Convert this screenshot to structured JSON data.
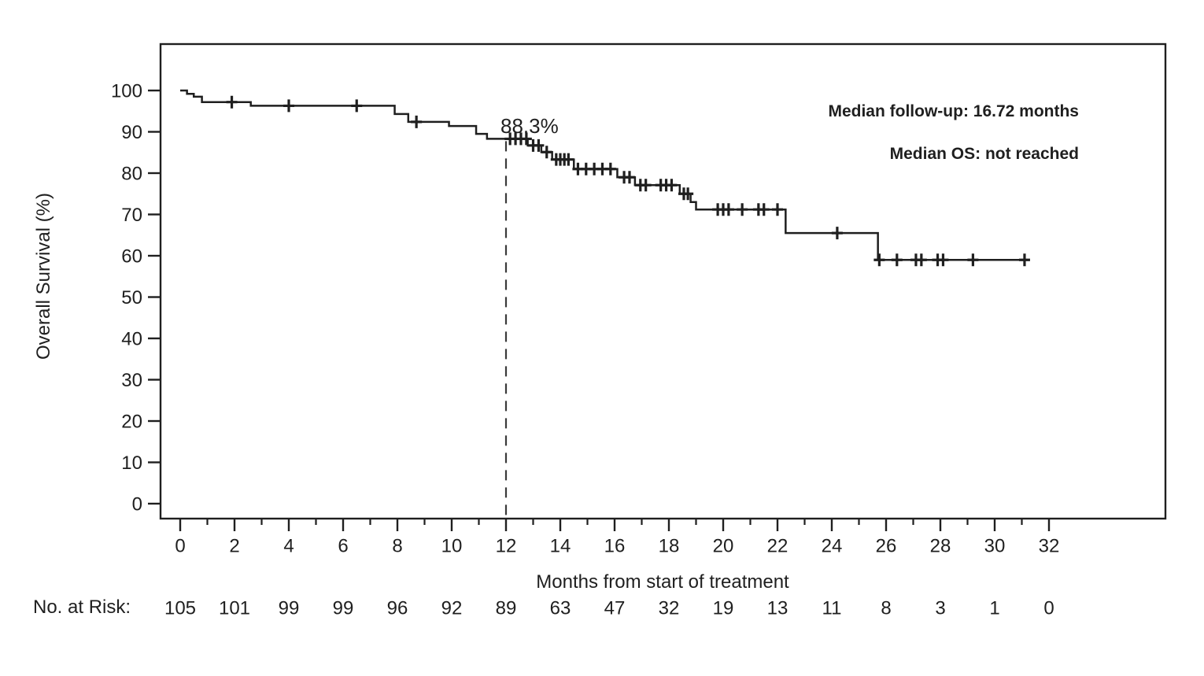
{
  "chart_data": {
    "type": "line",
    "subtype": "kaplan-meier-step-curve",
    "title": "",
    "xlabel": "Months from start of treatment",
    "ylabel": "Overall Survival (%)",
    "xlim": [
      0,
      32
    ],
    "ylim": [
      0,
      100
    ],
    "grid": false,
    "legend": false,
    "x_major_ticks": [
      0,
      2,
      4,
      6,
      8,
      10,
      12,
      14,
      16,
      18,
      20,
      22,
      24,
      26,
      28,
      30,
      32
    ],
    "x_minor_ticks": [
      1,
      3,
      5,
      7,
      9,
      11,
      13,
      15,
      17,
      19,
      21,
      23,
      25,
      27,
      29,
      31
    ],
    "y_ticks": [
      0,
      10,
      20,
      30,
      40,
      50,
      60,
      70,
      80,
      90,
      100
    ],
    "annotations": [
      "Median follow-up: 16.72 months",
      "Median OS: not reached"
    ],
    "landmark": {
      "month": 12,
      "survival_pct": 88.3,
      "label": "88.3%",
      "dashed_line": true
    },
    "series": [
      {
        "name": "Overall Survival",
        "steps": [
          [
            0.0,
            100.0
          ],
          [
            0.25,
            99.2
          ],
          [
            0.5,
            98.5
          ],
          [
            0.8,
            97.2
          ],
          [
            2.6,
            96.3
          ],
          [
            7.9,
            94.3
          ],
          [
            8.4,
            92.4
          ],
          [
            9.9,
            91.4
          ],
          [
            10.9,
            89.5
          ],
          [
            11.3,
            88.3
          ],
          [
            12.8,
            86.7
          ],
          [
            13.3,
            85.1
          ],
          [
            13.7,
            83.3
          ],
          [
            14.5,
            81.0
          ],
          [
            16.1,
            79.0
          ],
          [
            16.75,
            77.1
          ],
          [
            18.4,
            75.0
          ],
          [
            18.8,
            73.0
          ],
          [
            19.0,
            71.2
          ],
          [
            22.3,
            65.5
          ],
          [
            25.7,
            59.0
          ]
        ],
        "end_month": 31.2,
        "censors": [
          [
            1.9,
            97.2
          ],
          [
            4.0,
            96.3
          ],
          [
            6.5,
            96.3
          ],
          [
            8.7,
            92.4
          ],
          [
            12.15,
            88.3
          ],
          [
            12.35,
            88.3
          ],
          [
            12.55,
            88.3
          ],
          [
            12.75,
            88.3
          ],
          [
            13.0,
            86.7
          ],
          [
            13.2,
            86.7
          ],
          [
            13.5,
            85.1
          ],
          [
            13.85,
            83.3
          ],
          [
            14.0,
            83.3
          ],
          [
            14.15,
            83.3
          ],
          [
            14.3,
            83.3
          ],
          [
            14.65,
            81.0
          ],
          [
            14.95,
            81.0
          ],
          [
            15.25,
            81.0
          ],
          [
            15.55,
            81.0
          ],
          [
            15.85,
            81.0
          ],
          [
            16.35,
            79.0
          ],
          [
            16.55,
            79.0
          ],
          [
            16.95,
            77.1
          ],
          [
            17.15,
            77.1
          ],
          [
            17.7,
            77.1
          ],
          [
            17.9,
            77.1
          ],
          [
            18.1,
            77.1
          ],
          [
            18.55,
            75.0
          ],
          [
            18.7,
            75.0
          ],
          [
            19.8,
            71.2
          ],
          [
            20.0,
            71.2
          ],
          [
            20.2,
            71.2
          ],
          [
            20.7,
            71.2
          ],
          [
            21.3,
            71.2
          ],
          [
            21.5,
            71.2
          ],
          [
            22.0,
            71.2
          ],
          [
            24.2,
            65.5
          ],
          [
            25.75,
            59.0
          ],
          [
            26.4,
            59.0
          ],
          [
            27.1,
            59.0
          ],
          [
            27.3,
            59.0
          ],
          [
            27.9,
            59.0
          ],
          [
            28.1,
            59.0
          ],
          [
            29.2,
            59.0
          ],
          [
            31.1,
            59.0
          ]
        ]
      }
    ],
    "risk_table": {
      "label": "No. at Risk:",
      "months": [
        0,
        2,
        4,
        6,
        8,
        10,
        12,
        14,
        16,
        18,
        20,
        22,
        24,
        26,
        28,
        30,
        32
      ],
      "values": [
        105,
        101,
        99,
        99,
        96,
        92,
        89,
        63,
        47,
        32,
        19,
        13,
        11,
        8,
        3,
        1,
        0
      ]
    },
    "colors": {
      "ink": "#1f1f1f",
      "dashed_line": "#3a3a3a",
      "background": "#ffffff"
    }
  }
}
